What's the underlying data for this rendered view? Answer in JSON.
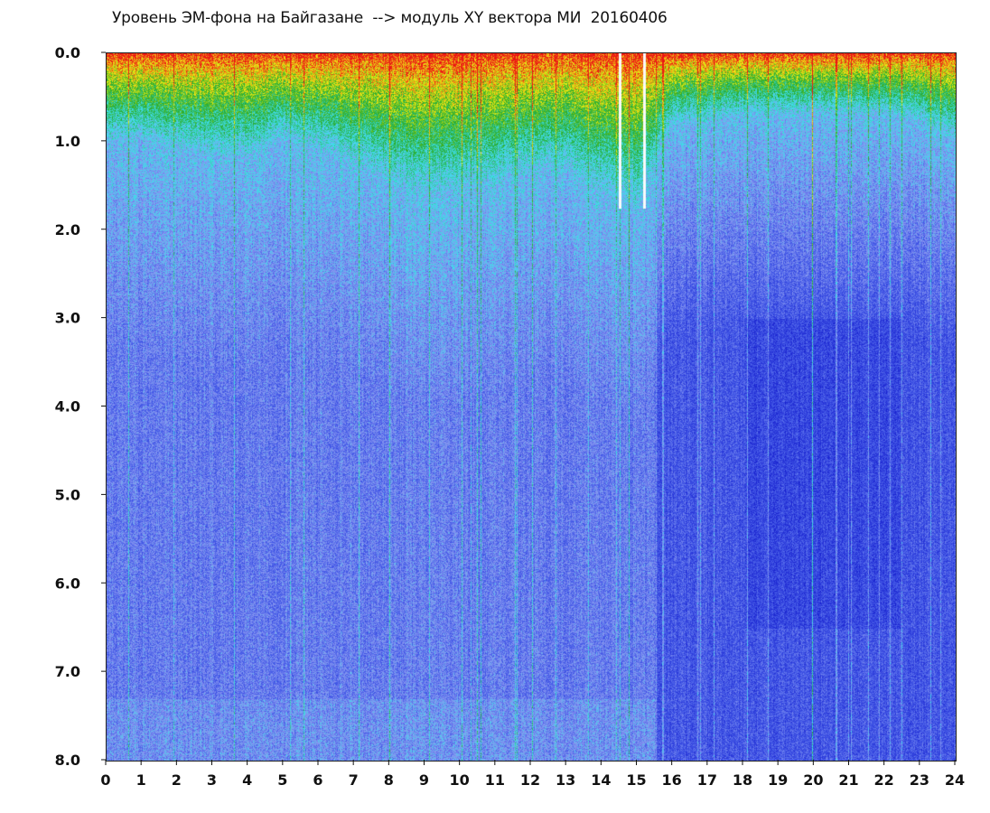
{
  "chart_data": {
    "type": "heatmap",
    "title": "Уровень ЭМ-фона на Байгазане  --> модуль XY вектора МИ  20160406",
    "xlabel": "",
    "ylabel": "",
    "xlim": [
      0,
      24
    ],
    "ylim": [
      8.0,
      0.0
    ],
    "y_axis_inverted": true,
    "x_ticks": [
      "0",
      "1",
      "2",
      "3",
      "4",
      "5",
      "6",
      "7",
      "8",
      "9",
      "10",
      "11",
      "12",
      "13",
      "14",
      "15",
      "16",
      "17",
      "18",
      "19",
      "20",
      "21",
      "22",
      "23",
      "24"
    ],
    "y_ticks": [
      "0.0",
      "1.0",
      "2.0",
      "3.0",
      "4.0",
      "5.0",
      "6.0",
      "7.0",
      "8.0"
    ],
    "colormap": [
      "#1a20d0",
      "#4a5fe6",
      "#8a9af0",
      "#3fe0ee",
      "#22b018",
      "#f0f000",
      "#ee1010"
    ],
    "description_of_intensity_by_hour": {
      "hours": [
        0,
        1,
        2,
        3,
        4,
        5,
        6,
        7,
        8,
        9,
        10,
        11,
        12,
        13,
        14,
        15,
        16,
        17,
        18,
        19,
        20,
        21,
        22,
        23,
        24
      ],
      "high_band_depth": [
        1.0,
        1.0,
        1.1,
        1.2,
        1.2,
        1.0,
        1.1,
        1.3,
        1.5,
        1.6,
        1.6,
        1.5,
        1.4,
        1.4,
        1.6,
        1.8,
        0.8,
        0.8,
        0.7,
        0.7,
        0.7,
        0.7,
        0.7,
        0.8,
        1.0
      ]
    },
    "gaps_hours": [
      14.5,
      15.2
    ]
  }
}
